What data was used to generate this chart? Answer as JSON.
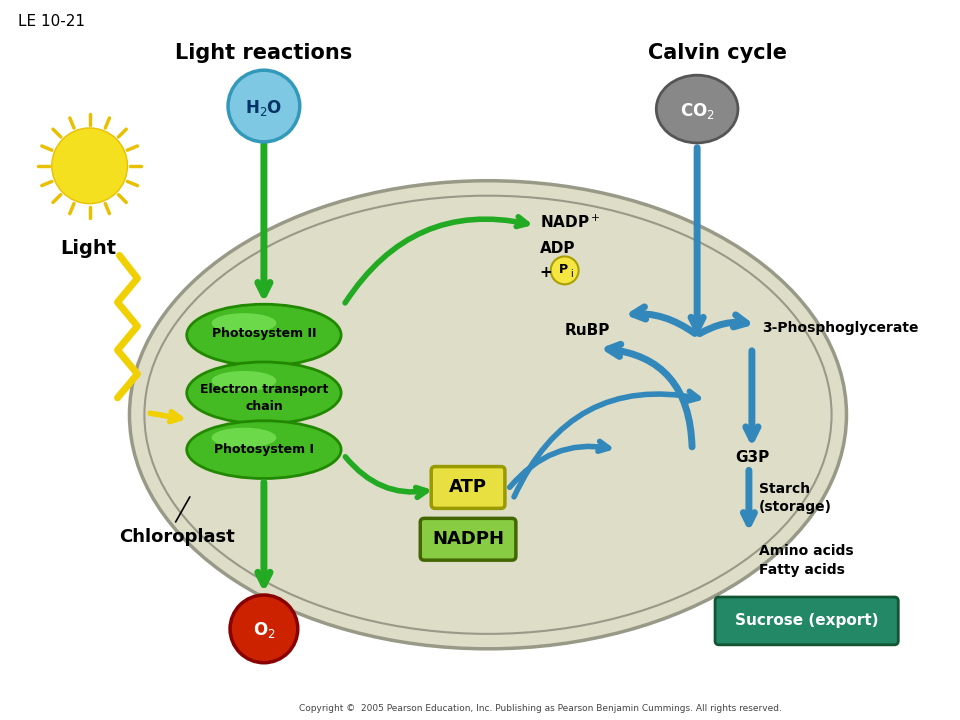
{
  "title": "LE 10-21",
  "bg_color": "#ffffff",
  "chloroplast_fill": "#ddddc8",
  "chloroplast_edge": "#999988",
  "light_reactions_label": "Light reactions",
  "calvin_cycle_label": "Calvin cycle",
  "light_label": "Light",
  "chloroplast_label": "Chloroplast",
  "h2o_color": "#7ec8e3",
  "h2o_edge": "#3399bb",
  "co2_color": "#888888",
  "co2_edge": "#555555",
  "o2_color": "#cc2200",
  "o2_edge": "#880000",
  "atp_color": "#e8e040",
  "atp_edge": "#999900",
  "nadph_color": "#88cc44",
  "nadph_edge": "#446600",
  "green_arrow": "#22aa22",
  "blue_arrow": "#3388bb",
  "sun_color": "#f5e020",
  "sun_ray_color": "#e8c000",
  "zigzag_color": "#f0d000",
  "photosystem_fill": "#44bb22",
  "photosystem_edge": "#228800",
  "photosystem_highlight": "#88ee66",
  "sucrose_color": "#228866",
  "sucrose_edge": "#115533",
  "pi_color": "#f5e642",
  "pi_edge": "#aaa000",
  "copyright": "Copyright ©  2005 Pearson Education, Inc. Publishing as Pearson Benjamin Cummings. All rights reserved."
}
